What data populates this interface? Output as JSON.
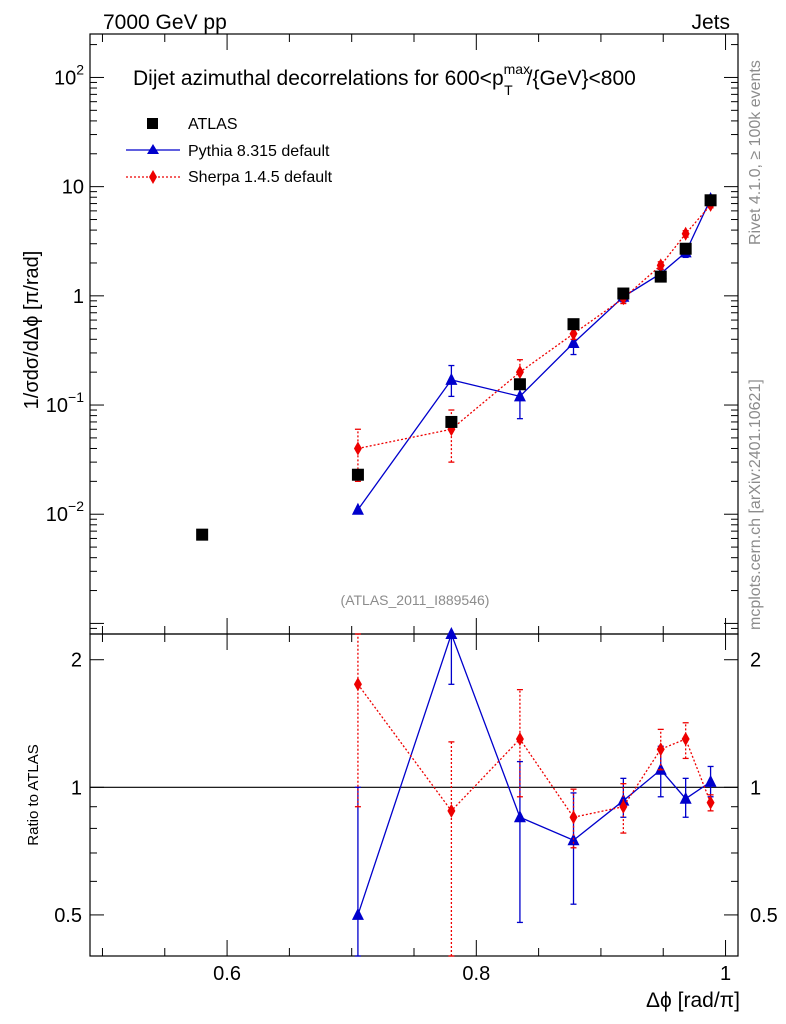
{
  "header": {
    "left": "7000 GeV pp",
    "right": "Jets"
  },
  "side_labels": {
    "rivet": "Rivet 4.1.0, ≥ 100k events",
    "mcplots": "mcplots.cern.ch [arXiv:2401.10621]"
  },
  "colors": {
    "atlas": "#000000",
    "pythia": "#0000cc",
    "sherpa": "#ee0000",
    "analysis": "#8c8c8c"
  },
  "chart_data": [
    {
      "type": "scatter",
      "panel": "main",
      "title": "Dijet azimuthal decorrelations for 600<p_T^max/{GeV}<800",
      "title_parts": {
        "pre": "Dijet azimuthal decorrelations for 600<p",
        "sub": "T",
        "sup": "max",
        "post": "/{GeV}<800"
      },
      "ylabel": "1/σdσ/dΔϕ [π/rad]",
      "yscale": "log",
      "ylim": [
        0.0008,
        250
      ],
      "xlim": [
        0.49,
        1.01
      ],
      "y_ticks": [
        {
          "value": 0.01,
          "label": "10",
          "exp": "−2"
        },
        {
          "value": 0.1,
          "label": "10",
          "exp": "−1"
        },
        {
          "value": 1,
          "label": "1",
          "exp": ""
        },
        {
          "value": 10,
          "label": "10",
          "exp": ""
        },
        {
          "value": 100,
          "label": "10",
          "exp": "2"
        }
      ],
      "analysis_label": "(ATLAS_2011_I889546)",
      "legend": [
        "ATLAS",
        "Pythia 8.315 default",
        "Sherpa 1.4.5 default"
      ],
      "series": [
        {
          "name": "ATLAS",
          "marker": "square",
          "x": [
            0.58,
            0.705,
            0.78,
            0.835,
            0.878,
            0.918,
            0.948,
            0.968,
            0.988
          ],
          "y": [
            0.0065,
            0.023,
            0.07,
            0.155,
            0.55,
            1.05,
            1.5,
            2.7,
            7.5
          ]
        },
        {
          "name": "Pythia 8.315 default",
          "marker": "triangle",
          "line": "solid",
          "x": [
            0.705,
            0.78,
            0.835,
            0.878,
            0.918,
            0.948,
            0.968,
            0.988
          ],
          "y": [
            0.011,
            0.17,
            0.12,
            0.37,
            0.98,
            1.6,
            2.5,
            7.7
          ],
          "err_lo": [
            0.011,
            0.12,
            0.075,
            0.29,
            0.88,
            1.45,
            2.25,
            7.1
          ],
          "err_hi": [
            0.011,
            0.23,
            0.17,
            0.45,
            1.08,
            1.75,
            2.75,
            8.3
          ]
        },
        {
          "name": "Sherpa 1.4.5 default",
          "marker": "diamond",
          "line": "dotted",
          "x": [
            0.705,
            0.78,
            0.835,
            0.878,
            0.918,
            0.948,
            0.968,
            0.988
          ],
          "y": [
            0.04,
            0.06,
            0.2,
            0.45,
            0.95,
            1.9,
            3.7,
            6.8
          ],
          "err_lo": [
            0.02,
            0.03,
            0.15,
            0.4,
            0.85,
            1.75,
            3.45,
            6.4
          ],
          "err_hi": [
            0.06,
            0.09,
            0.26,
            0.5,
            1.05,
            2.05,
            3.95,
            7.2
          ]
        }
      ]
    },
    {
      "type": "line",
      "panel": "ratio",
      "ylabel": "Ratio to ATLAS",
      "xlabel": "Δϕ [rad/π]",
      "yscale": "log",
      "ylim": [
        0.4,
        2.3
      ],
      "xlim": [
        0.49,
        1.01
      ],
      "reference_line": 1,
      "y_ticks": [
        {
          "value": 0.5,
          "label": "0.5"
        },
        {
          "value": 1,
          "label": "1"
        },
        {
          "value": 2,
          "label": "2"
        }
      ],
      "x_ticks": [
        {
          "value": 0.6,
          "label": "0.6"
        },
        {
          "value": 0.8,
          "label": "0.8"
        },
        {
          "value": 1.0,
          "label": "1"
        }
      ],
      "series": [
        {
          "name": "Pythia 8.315 default",
          "marker": "triangle",
          "line": "solid",
          "x": [
            0.705,
            0.78,
            0.835,
            0.878,
            0.918,
            0.948,
            0.968,
            0.988
          ],
          "y": [
            0.5,
            2.3,
            0.85,
            0.75,
            0.93,
            1.1,
            0.94,
            1.03
          ],
          "err_lo": [
            0.3,
            1.75,
            0.48,
            0.53,
            0.85,
            0.95,
            0.85,
            0.95
          ],
          "err_hi": [
            1.0,
            2.3,
            1.15,
            0.97,
            1.05,
            1.25,
            1.05,
            1.12
          ]
        },
        {
          "name": "Sherpa 1.4.5 default",
          "marker": "diamond",
          "line": "dotted",
          "x": [
            0.705,
            0.78,
            0.835,
            0.878,
            0.918,
            0.948,
            0.968,
            0.988
          ],
          "y": [
            1.75,
            0.88,
            1.3,
            0.85,
            0.9,
            1.23,
            1.3,
            0.92
          ],
          "err_lo": [
            0.9,
            0.38,
            0.95,
            0.72,
            0.78,
            1.1,
            1.17,
            0.88
          ],
          "err_hi": [
            2.3,
            1.28,
            1.7,
            0.99,
            1.02,
            1.37,
            1.42,
            0.96
          ]
        }
      ]
    }
  ]
}
